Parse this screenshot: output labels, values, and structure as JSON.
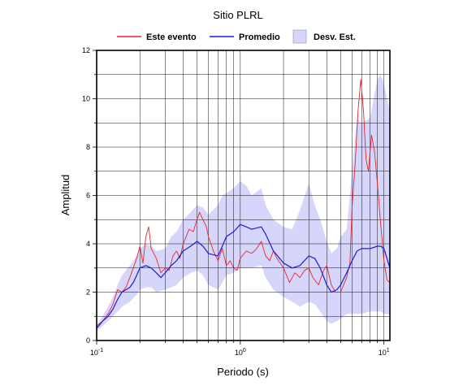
{
  "chart_data": {
    "type": "line",
    "title": "Sitio PLRL",
    "xlabel": "Periodo (s)",
    "ylabel": "Amplitud",
    "xscale": "log",
    "xlim": [
      0.1,
      11
    ],
    "ylim": [
      0,
      12
    ],
    "yticks": [
      "0",
      "2",
      "4",
      "6",
      "8",
      "10",
      "12"
    ],
    "xticks": [
      {
        "value": 0.1,
        "base": "10",
        "exp": "-1"
      },
      {
        "value": 1,
        "base": "10",
        "exp": "0"
      },
      {
        "value": 10,
        "base": "10",
        "exp": "1"
      }
    ],
    "grid": true,
    "legend_position": "top",
    "series": [
      {
        "name": "Este evento",
        "color": "#e8262b",
        "points": [
          [
            0.1,
            0.6
          ],
          [
            0.11,
            0.8
          ],
          [
            0.12,
            1.1
          ],
          [
            0.13,
            1.5
          ],
          [
            0.14,
            2.1
          ],
          [
            0.15,
            2.0
          ],
          [
            0.16,
            2.2
          ],
          [
            0.17,
            2.6
          ],
          [
            0.18,
            3.0
          ],
          [
            0.19,
            3.4
          ],
          [
            0.2,
            3.9
          ],
          [
            0.21,
            3.2
          ],
          [
            0.22,
            4.3
          ],
          [
            0.23,
            4.7
          ],
          [
            0.24,
            3.8
          ],
          [
            0.26,
            3.4
          ],
          [
            0.28,
            2.8
          ],
          [
            0.3,
            3.0
          ],
          [
            0.32,
            2.9
          ],
          [
            0.34,
            3.5
          ],
          [
            0.36,
            3.7
          ],
          [
            0.38,
            3.4
          ],
          [
            0.4,
            4.0
          ],
          [
            0.42,
            4.3
          ],
          [
            0.44,
            4.6
          ],
          [
            0.47,
            4.5
          ],
          [
            0.5,
            5.0
          ],
          [
            0.52,
            5.3
          ],
          [
            0.55,
            5.0
          ],
          [
            0.58,
            4.7
          ],
          [
            0.6,
            4.3
          ],
          [
            0.65,
            3.7
          ],
          [
            0.7,
            3.3
          ],
          [
            0.75,
            3.8
          ],
          [
            0.8,
            3.1
          ],
          [
            0.85,
            3.3
          ],
          [
            0.9,
            3.0
          ],
          [
            0.95,
            2.9
          ],
          [
            1.0,
            3.4
          ],
          [
            1.1,
            3.7
          ],
          [
            1.2,
            3.6
          ],
          [
            1.3,
            3.8
          ],
          [
            1.4,
            4.1
          ],
          [
            1.5,
            3.5
          ],
          [
            1.6,
            3.3
          ],
          [
            1.7,
            3.7
          ],
          [
            1.8,
            3.4
          ],
          [
            2.0,
            3.0
          ],
          [
            2.2,
            2.4
          ],
          [
            2.4,
            2.8
          ],
          [
            2.6,
            2.6
          ],
          [
            2.8,
            2.9
          ],
          [
            3.0,
            3.0
          ],
          [
            3.2,
            2.6
          ],
          [
            3.5,
            2.3
          ],
          [
            3.8,
            2.9
          ],
          [
            4.0,
            3.1
          ],
          [
            4.3,
            2.3
          ],
          [
            4.6,
            2.0
          ],
          [
            5.0,
            2.0
          ],
          [
            5.5,
            2.6
          ],
          [
            5.8,
            3.2
          ],
          [
            6.0,
            5.5
          ],
          [
            6.3,
            7.3
          ],
          [
            6.6,
            9.5
          ],
          [
            6.9,
            10.8
          ],
          [
            7.2,
            9.5
          ],
          [
            7.5,
            7.5
          ],
          [
            7.8,
            7.0
          ],
          [
            8.2,
            8.5
          ],
          [
            8.6,
            7.8
          ],
          [
            9.0,
            6.5
          ],
          [
            9.5,
            4.8
          ],
          [
            10.0,
            3.3
          ],
          [
            10.5,
            2.5
          ],
          [
            11.0,
            2.4
          ]
        ]
      },
      {
        "name": "Promedio",
        "color": "#1a1ae0",
        "points": [
          [
            0.1,
            0.5
          ],
          [
            0.11,
            0.8
          ],
          [
            0.12,
            1.0
          ],
          [
            0.13,
            1.3
          ],
          [
            0.14,
            1.7
          ],
          [
            0.15,
            2.0
          ],
          [
            0.16,
            2.1
          ],
          [
            0.17,
            2.2
          ],
          [
            0.18,
            2.4
          ],
          [
            0.19,
            2.7
          ],
          [
            0.2,
            3.0
          ],
          [
            0.22,
            3.1
          ],
          [
            0.24,
            3.0
          ],
          [
            0.26,
            2.8
          ],
          [
            0.28,
            2.6
          ],
          [
            0.3,
            2.8
          ],
          [
            0.33,
            3.1
          ],
          [
            0.36,
            3.3
          ],
          [
            0.4,
            3.7
          ],
          [
            0.45,
            3.9
          ],
          [
            0.5,
            4.1
          ],
          [
            0.55,
            3.9
          ],
          [
            0.6,
            3.6
          ],
          [
            0.7,
            3.5
          ],
          [
            0.75,
            3.9
          ],
          [
            0.8,
            4.3
          ],
          [
            0.9,
            4.5
          ],
          [
            1.0,
            4.8
          ],
          [
            1.1,
            4.7
          ],
          [
            1.2,
            4.6
          ],
          [
            1.4,
            4.7
          ],
          [
            1.5,
            4.4
          ],
          [
            1.7,
            3.7
          ],
          [
            2.0,
            3.2
          ],
          [
            2.3,
            3.0
          ],
          [
            2.6,
            3.1
          ],
          [
            3.0,
            3.5
          ],
          [
            3.3,
            3.4
          ],
          [
            3.6,
            3.0
          ],
          [
            4.0,
            2.3
          ],
          [
            4.3,
            2.0
          ],
          [
            4.7,
            2.1
          ],
          [
            5.0,
            2.3
          ],
          [
            5.5,
            2.8
          ],
          [
            6.0,
            3.3
          ],
          [
            6.5,
            3.7
          ],
          [
            7.0,
            3.8
          ],
          [
            8.0,
            3.8
          ],
          [
            9.0,
            3.9
          ],
          [
            9.5,
            3.9
          ],
          [
            10.0,
            3.8
          ],
          [
            11.0,
            3.0
          ]
        ]
      }
    ],
    "band": {
      "name": "Desv. Est.",
      "color": "#d6d6fa",
      "upper": [
        [
          0.1,
          0.6
        ],
        [
          0.11,
          1.0
        ],
        [
          0.12,
          1.4
        ],
        [
          0.13,
          1.8
        ],
        [
          0.14,
          2.3
        ],
        [
          0.15,
          2.7
        ],
        [
          0.17,
          3.1
        ],
        [
          0.19,
          3.5
        ],
        [
          0.2,
          3.8
        ],
        [
          0.22,
          4.0
        ],
        [
          0.24,
          3.9
        ],
        [
          0.26,
          3.7
        ],
        [
          0.3,
          3.8
        ],
        [
          0.33,
          4.3
        ],
        [
          0.36,
          4.5
        ],
        [
          0.4,
          5.0
        ],
        [
          0.45,
          5.3
        ],
        [
          0.5,
          5.6
        ],
        [
          0.55,
          5.5
        ],
        [
          0.6,
          5.2
        ],
        [
          0.7,
          5.6
        ],
        [
          0.75,
          6.0
        ],
        [
          0.8,
          6.1
        ],
        [
          0.9,
          6.3
        ],
        [
          1.0,
          6.6
        ],
        [
          1.1,
          6.4
        ],
        [
          1.2,
          6.0
        ],
        [
          1.4,
          6.3
        ],
        [
          1.5,
          5.6
        ],
        [
          1.7,
          5.0
        ],
        [
          2.0,
          4.7
        ],
        [
          2.3,
          4.6
        ],
        [
          2.6,
          5.4
        ],
        [
          3.0,
          6.5
        ],
        [
          3.3,
          5.6
        ],
        [
          3.6,
          5.0
        ],
        [
          4.0,
          4.1
        ],
        [
          4.3,
          3.6
        ],
        [
          4.7,
          3.8
        ],
        [
          5.0,
          4.3
        ],
        [
          5.5,
          4.6
        ],
        [
          6.0,
          7.0
        ],
        [
          6.5,
          9.2
        ],
        [
          7.0,
          9.0
        ],
        [
          8.0,
          9.2
        ],
        [
          9.0,
          10.8
        ],
        [
          9.5,
          11.0
        ],
        [
          10.0,
          10.6
        ],
        [
          11.0,
          9.5
        ]
      ],
      "lower": [
        [
          0.1,
          0.4
        ],
        [
          0.11,
          0.6
        ],
        [
          0.12,
          0.8
        ],
        [
          0.13,
          1.0
        ],
        [
          0.14,
          1.2
        ],
        [
          0.15,
          1.4
        ],
        [
          0.17,
          1.6
        ],
        [
          0.19,
          1.9
        ],
        [
          0.2,
          2.1
        ],
        [
          0.22,
          2.2
        ],
        [
          0.24,
          2.2
        ],
        [
          0.26,
          2.0
        ],
        [
          0.3,
          2.1
        ],
        [
          0.33,
          2.2
        ],
        [
          0.36,
          2.3
        ],
        [
          0.4,
          2.6
        ],
        [
          0.45,
          2.8
        ],
        [
          0.5,
          2.9
        ],
        [
          0.55,
          2.7
        ],
        [
          0.6,
          2.3
        ],
        [
          0.7,
          2.1
        ],
        [
          0.75,
          2.4
        ],
        [
          0.8,
          2.7
        ],
        [
          0.9,
          2.8
        ],
        [
          1.0,
          3.0
        ],
        [
          1.1,
          3.0
        ],
        [
          1.2,
          3.0
        ],
        [
          1.4,
          3.1
        ],
        [
          1.5,
          2.6
        ],
        [
          1.7,
          2.1
        ],
        [
          2.0,
          1.8
        ],
        [
          2.3,
          1.6
        ],
        [
          2.6,
          1.4
        ],
        [
          3.0,
          1.6
        ],
        [
          3.3,
          1.5
        ],
        [
          3.6,
          1.2
        ],
        [
          4.0,
          0.8
        ],
        [
          4.3,
          0.7
        ],
        [
          4.7,
          0.8
        ],
        [
          5.0,
          0.9
        ],
        [
          5.5,
          1.1
        ],
        [
          6.0,
          1.1
        ],
        [
          6.5,
          1.1
        ],
        [
          7.0,
          1.1
        ],
        [
          8.0,
          1.2
        ],
        [
          9.0,
          1.2
        ],
        [
          9.5,
          1.2
        ],
        [
          10.0,
          1.1
        ],
        [
          11.0,
          1.1
        ]
      ]
    }
  }
}
